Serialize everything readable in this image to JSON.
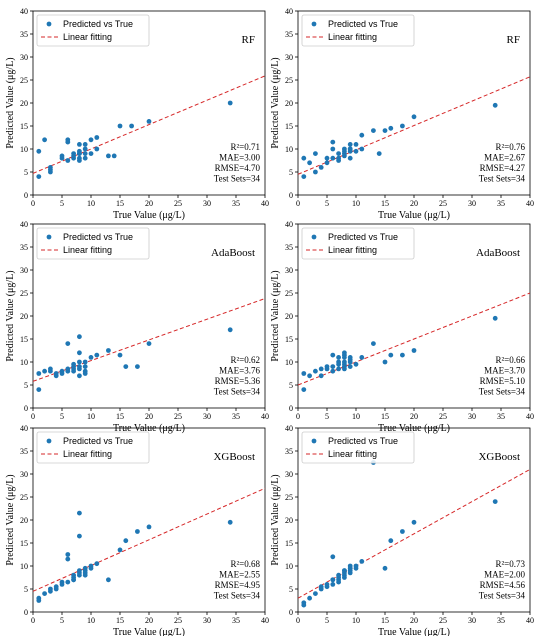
{
  "colors": {
    "point": "#1f77b4",
    "fit_line": "#d62728",
    "axis": "#000000",
    "legend_border": "#cccccc"
  },
  "chart_data": [
    {
      "type": "scatter",
      "model": "RF",
      "xlabel": "True Value (μg/L)",
      "ylabel": "Predicted Value (μg/L)",
      "xlim": [
        0,
        40
      ],
      "ylim": [
        0,
        40
      ],
      "xticks": [
        "0",
        "5",
        "10",
        "15",
        "20",
        "25",
        "30",
        "35",
        "40"
      ],
      "yticks": [
        "0",
        "5",
        "10",
        "15",
        "20",
        "25",
        "30",
        "35",
        "40"
      ],
      "legend": [
        "Predicted vs True",
        "Linear fitting"
      ],
      "legend_position": "top-left",
      "metrics": [
        "R²=0.71",
        "MAE=3.00",
        "RMSE=4.70",
        "Test Sets=34"
      ],
      "fit_line": {
        "slope": 0.53,
        "intercept": 4.7
      },
      "points": [
        [
          1,
          9.5
        ],
        [
          1,
          4
        ],
        [
          2,
          12
        ],
        [
          3,
          5.5
        ],
        [
          3,
          6
        ],
        [
          3,
          5
        ],
        [
          5,
          8
        ],
        [
          5,
          8.5
        ],
        [
          6,
          12
        ],
        [
          6,
          11.5
        ],
        [
          6,
          7.5
        ],
        [
          7,
          9
        ],
        [
          7,
          8
        ],
        [
          7,
          8.5
        ],
        [
          8,
          9
        ],
        [
          8,
          8
        ],
        [
          8,
          11
        ],
        [
          8,
          9.5
        ],
        [
          8,
          7.5
        ],
        [
          8,
          9
        ],
        [
          9,
          8
        ],
        [
          9,
          10
        ],
        [
          9,
          9
        ],
        [
          9,
          11
        ],
        [
          10,
          12
        ],
        [
          10,
          9
        ],
        [
          11,
          10
        ],
        [
          11,
          12.5
        ],
        [
          13,
          8.5
        ],
        [
          14,
          8.5
        ],
        [
          15,
          15
        ],
        [
          17,
          15
        ],
        [
          20,
          16
        ],
        [
          34,
          20
        ]
      ]
    },
    {
      "type": "scatter",
      "model": "RF",
      "xlabel": "True Value (μg/L)",
      "ylabel": "Predicted Value (μg/L)",
      "xlim": [
        0,
        40
      ],
      "ylim": [
        0,
        40
      ],
      "xticks": [
        "0",
        "5",
        "10",
        "15",
        "20",
        "25",
        "30",
        "35",
        "40"
      ],
      "yticks": [
        "0",
        "5",
        "10",
        "15",
        "20",
        "25",
        "30",
        "35",
        "40"
      ],
      "legend": [
        "Predicted vs True",
        "Linear fitting"
      ],
      "legend_position": "top-left",
      "metrics": [
        "R²=0.76",
        "MAE=2.67",
        "RMSE=4.27",
        "Test Sets=34"
      ],
      "fit_line": {
        "slope": 0.53,
        "intercept": 4.5
      },
      "points": [
        [
          1,
          8
        ],
        [
          1,
          4
        ],
        [
          2,
          7
        ],
        [
          3,
          9
        ],
        [
          3,
          5
        ],
        [
          4,
          6
        ],
        [
          5,
          8
        ],
        [
          6,
          11.5
        ],
        [
          6,
          10
        ],
        [
          6,
          8
        ],
        [
          7,
          7.5
        ],
        [
          7,
          9
        ],
        [
          7,
          8
        ],
        [
          8,
          10
        ],
        [
          8,
          9
        ],
        [
          8,
          8.5
        ],
        [
          8,
          9.5
        ],
        [
          9,
          10
        ],
        [
          9,
          9.5
        ],
        [
          9,
          11
        ],
        [
          9,
          8
        ],
        [
          9,
          10
        ],
        [
          10,
          9.5
        ],
        [
          10,
          11
        ],
        [
          11,
          10
        ],
        [
          11,
          13
        ],
        [
          13,
          14
        ],
        [
          14,
          9
        ],
        [
          15,
          14
        ],
        [
          16,
          14.5
        ],
        [
          18,
          15
        ],
        [
          20,
          17
        ],
        [
          34,
          19.5
        ],
        [
          5,
          7
        ]
      ]
    },
    {
      "type": "scatter",
      "model": "AdaBoost",
      "xlabel": "True Value (μg/L)",
      "ylabel": "Predicted Value (μg/L)",
      "xlim": [
        0,
        40
      ],
      "ylim": [
        0,
        40
      ],
      "xticks": [
        "0",
        "5",
        "10",
        "15",
        "20",
        "25",
        "30",
        "35",
        "40"
      ],
      "yticks": [
        "0",
        "5",
        "10",
        "15",
        "20",
        "25",
        "30",
        "35",
        "40"
      ],
      "legend": [
        "Predicted vs True",
        "Linear fitting"
      ],
      "legend_position": "top-left",
      "metrics": [
        "R²=0.62",
        "MAE=3.76",
        "RMSE=5.36",
        "Test Sets=34"
      ],
      "fit_line": {
        "slope": 0.45,
        "intercept": 5.8
      },
      "points": [
        [
          1,
          7.5
        ],
        [
          1,
          4
        ],
        [
          3,
          8.5
        ],
        [
          3,
          8
        ],
        [
          4,
          7.5
        ],
        [
          4,
          7
        ],
        [
          5,
          8
        ],
        [
          6,
          14
        ],
        [
          6,
          8
        ],
        [
          6,
          8.5
        ],
        [
          7,
          9
        ],
        [
          7,
          8
        ],
        [
          7,
          8.5
        ],
        [
          8,
          15.5
        ],
        [
          8,
          12
        ],
        [
          8,
          9
        ],
        [
          8,
          7
        ],
        [
          8,
          8.5
        ],
        [
          8,
          10
        ],
        [
          9,
          10
        ],
        [
          9,
          9
        ],
        [
          9,
          8
        ],
        [
          9,
          7.5
        ],
        [
          10,
          11
        ],
        [
          11,
          11.5
        ],
        [
          13,
          12.5
        ],
        [
          15,
          11.5
        ],
        [
          16,
          9
        ],
        [
          18,
          9
        ],
        [
          20,
          14
        ],
        [
          34,
          17
        ],
        [
          2,
          8
        ],
        [
          5,
          7.5
        ],
        [
          7,
          9.5
        ]
      ]
    },
    {
      "type": "scatter",
      "model": "AdaBoost",
      "xlabel": "True Value (μg/L)",
      "ylabel": "Predicted Value (μg/L)",
      "xlim": [
        0,
        40
      ],
      "ylim": [
        0,
        40
      ],
      "xticks": [
        "0",
        "5",
        "10",
        "15",
        "20",
        "25",
        "30",
        "35",
        "40"
      ],
      "yticks": [
        "0",
        "5",
        "10",
        "15",
        "20",
        "25",
        "30",
        "35",
        "40"
      ],
      "legend": [
        "Predicted vs True",
        "Linear fitting"
      ],
      "legend_position": "top-left",
      "metrics": [
        "R²=0.66",
        "MAE=3.70",
        "RMSE=5.10",
        "Test Sets=34"
      ],
      "fit_line": {
        "slope": 0.5,
        "intercept": 5.0
      },
      "points": [
        [
          1,
          7.5
        ],
        [
          1,
          4
        ],
        [
          2,
          7
        ],
        [
          3,
          8
        ],
        [
          4,
          7
        ],
        [
          4,
          8.5
        ],
        [
          5,
          9
        ],
        [
          6,
          11.5
        ],
        [
          6,
          9
        ],
        [
          7,
          10
        ],
        [
          7,
          11
        ],
        [
          7,
          8.5
        ],
        [
          8,
          12
        ],
        [
          8,
          11
        ],
        [
          8,
          9.5
        ],
        [
          8,
          9
        ],
        [
          8,
          10
        ],
        [
          8,
          8.5
        ],
        [
          8,
          11.5
        ],
        [
          9,
          10
        ],
        [
          9,
          9
        ],
        [
          9,
          11
        ],
        [
          9,
          10.5
        ],
        [
          10,
          9.5
        ],
        [
          11,
          11
        ],
        [
          13,
          14
        ],
        [
          15,
          10
        ],
        [
          16,
          11.5
        ],
        [
          18,
          11.5
        ],
        [
          20,
          12.5
        ],
        [
          34,
          19.5
        ],
        [
          6,
          8
        ],
        [
          7,
          9.5
        ],
        [
          5,
          8.5
        ]
      ]
    },
    {
      "type": "scatter",
      "model": "XGBoost",
      "xlabel": "True Value (μg/L)",
      "ylabel": "Predicted Value (μg/L)",
      "xlim": [
        0,
        40
      ],
      "ylim": [
        0,
        40
      ],
      "xticks": [
        "0",
        "5",
        "10",
        "15",
        "20",
        "25",
        "30",
        "35",
        "40"
      ],
      "yticks": [
        "0",
        "5",
        "10",
        "15",
        "20",
        "25",
        "30",
        "35",
        "40"
      ],
      "legend": [
        "Predicted vs True",
        "Linear fitting"
      ],
      "legend_position": "top-left",
      "metrics": [
        "R²=0.68",
        "MAE=2.55",
        "RMSE=4.95",
        "Test Sets=34"
      ],
      "fit_line": {
        "slope": 0.56,
        "intercept": 4.5
      },
      "points": [
        [
          1,
          3
        ],
        [
          1,
          2.5
        ],
        [
          3,
          4.5
        ],
        [
          3,
          5
        ],
        [
          4,
          5.5
        ],
        [
          5,
          6
        ],
        [
          6,
          12.5
        ],
        [
          6,
          11.5
        ],
        [
          6,
          6.5
        ],
        [
          7,
          7
        ],
        [
          7,
          7.5
        ],
        [
          8,
          21.5
        ],
        [
          8,
          16.5
        ],
        [
          8,
          8
        ],
        [
          8,
          8.5
        ],
        [
          8,
          9
        ],
        [
          9,
          9
        ],
        [
          9,
          9.5
        ],
        [
          9,
          8.5
        ],
        [
          10,
          9.5
        ],
        [
          11,
          10.5
        ],
        [
          13,
          7
        ],
        [
          15,
          13.5
        ],
        [
          16,
          15.5
        ],
        [
          18,
          17.5
        ],
        [
          20,
          18.5
        ],
        [
          34,
          19.5
        ],
        [
          2,
          4
        ],
        [
          4,
          5
        ],
        [
          5,
          6.5
        ],
        [
          7,
          7
        ],
        [
          7,
          8
        ],
        [
          9,
          8
        ],
        [
          10,
          10
        ]
      ]
    },
    {
      "type": "scatter",
      "model": "XGBoost",
      "xlabel": "True Value (μg/L)",
      "ylabel": "Predicted Value (μg/L)",
      "xlim": [
        0,
        40
      ],
      "ylim": [
        0,
        40
      ],
      "xticks": [
        "0",
        "5",
        "10",
        "15",
        "20",
        "25",
        "30",
        "35",
        "40"
      ],
      "yticks": [
        "0",
        "5",
        "10",
        "15",
        "20",
        "25",
        "30",
        "35",
        "40"
      ],
      "legend": [
        "Predicted vs True",
        "Linear fitting"
      ],
      "legend_position": "top-left",
      "metrics": [
        "R²=0.73",
        "MAE=2.00",
        "RMSE=4.56",
        "Test Sets=34"
      ],
      "fit_line": {
        "slope": 0.7,
        "intercept": 3.0
      },
      "points": [
        [
          1,
          2
        ],
        [
          1,
          1.5
        ],
        [
          3,
          4
        ],
        [
          4,
          5
        ],
        [
          5,
          5.5
        ],
        [
          6,
          12
        ],
        [
          6,
          7
        ],
        [
          6,
          6
        ],
        [
          7,
          6.5
        ],
        [
          7,
          7
        ],
        [
          7,
          7.5
        ],
        [
          8,
          8.5
        ],
        [
          8,
          9
        ],
        [
          8,
          8
        ],
        [
          8,
          7.5
        ],
        [
          9,
          9
        ],
        [
          9,
          9.5
        ],
        [
          9,
          8.5
        ],
        [
          10,
          10
        ],
        [
          10,
          9.5
        ],
        [
          11,
          11
        ],
        [
          13,
          32.5
        ],
        [
          15,
          9.5
        ],
        [
          16,
          15.5
        ],
        [
          18,
          17.5
        ],
        [
          20,
          19.5
        ],
        [
          34,
          24
        ],
        [
          2,
          3
        ],
        [
          4,
          5.5
        ],
        [
          5,
          6
        ],
        [
          6,
          7
        ],
        [
          8,
          9
        ],
        [
          9,
          10
        ],
        [
          7,
          8
        ]
      ]
    }
  ]
}
